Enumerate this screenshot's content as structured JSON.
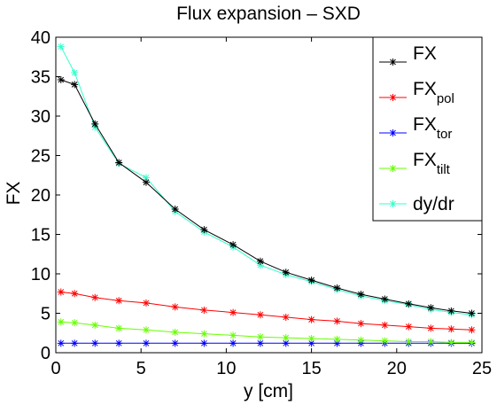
{
  "chart_data": {
    "type": "line",
    "title": "Flux expansion – SXD",
    "xlabel": "y [cm]",
    "ylabel": "FX",
    "xlim": [
      0,
      25
    ],
    "ylim": [
      0,
      40
    ],
    "xticks": [
      0,
      5,
      10,
      15,
      20,
      25
    ],
    "yticks": [
      0,
      5,
      10,
      15,
      20,
      25,
      30,
      35,
      40
    ],
    "grid": false,
    "legend_position": "top-right",
    "x": [
      0.3,
      1.1,
      2.3,
      3.7,
      5.3,
      7.0,
      8.7,
      10.4,
      12.0,
      13.5,
      15.0,
      16.5,
      17.9,
      19.3,
      20.7,
      22.0,
      23.2,
      24.4
    ],
    "series": [
      {
        "key": "FX",
        "name": "FX",
        "color": "#000000",
        "values": [
          34.6,
          34.0,
          29.0,
          24.1,
          21.6,
          18.2,
          15.6,
          13.7,
          11.6,
          10.2,
          9.2,
          8.2,
          7.4,
          6.8,
          6.2,
          5.7,
          5.3,
          5.0
        ]
      },
      {
        "key": "FX_pol",
        "name": "FX",
        "subscript": "pol",
        "color": "#ff0000",
        "values": [
          7.7,
          7.5,
          7.0,
          6.6,
          6.3,
          5.8,
          5.4,
          5.1,
          4.8,
          4.5,
          4.2,
          4.0,
          3.7,
          3.5,
          3.3,
          3.1,
          3.0,
          2.9
        ]
      },
      {
        "key": "FX_tor",
        "name": "FX",
        "subscript": "tor",
        "color": "#0000ff",
        "values": [
          1.2,
          1.2,
          1.2,
          1.2,
          1.2,
          1.2,
          1.2,
          1.2,
          1.2,
          1.2,
          1.2,
          1.2,
          1.2,
          1.2,
          1.2,
          1.2,
          1.2,
          1.2
        ]
      },
      {
        "key": "FX_tilt",
        "name": "FX",
        "subscript": "tilt",
        "color": "#66ff00",
        "values": [
          3.9,
          3.8,
          3.5,
          3.1,
          2.9,
          2.6,
          2.4,
          2.2,
          2.0,
          1.9,
          1.8,
          1.7,
          1.6,
          1.5,
          1.4,
          1.4,
          1.3,
          1.3
        ]
      },
      {
        "key": "dydr",
        "name": "dy/dr",
        "color": "#33ffcc",
        "values": [
          38.8,
          35.5,
          28.6,
          24.0,
          22.2,
          17.9,
          15.3,
          13.4,
          11.1,
          9.9,
          9.0,
          8.0,
          7.2,
          6.6,
          6.1,
          5.5,
          5.1,
          4.8
        ]
      }
    ]
  }
}
